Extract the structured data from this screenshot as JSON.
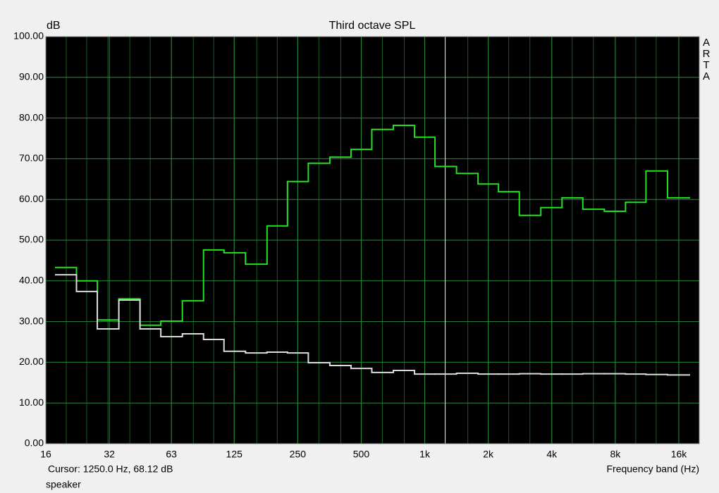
{
  "chart_data": {
    "type": "step",
    "title": "Third octave SPL",
    "y_unit": "dB",
    "watermark": "ARTA",
    "x_label": "Frequency band (Hz)",
    "cursor_label": "Cursor:  1250.0 Hz, 68.12 dB",
    "cursor_x": 1250,
    "x": [
      20,
      25,
      31.5,
      40,
      50,
      63,
      80,
      100,
      125,
      160,
      200,
      250,
      315,
      400,
      500,
      630,
      800,
      1000,
      1250,
      1600,
      2000,
      2500,
      3150,
      4000,
      5000,
      6300,
      8000,
      10000,
      12500,
      16000
    ],
    "xlim": [
      16,
      20000
    ],
    "xscale": "log",
    "xticks": [
      16,
      32,
      63,
      125,
      250,
      500,
      {
        "value": 1000,
        "label": "1k"
      },
      {
        "value": 2000,
        "label": "2k"
      },
      {
        "value": 4000,
        "label": "4k"
      },
      {
        "value": 8000,
        "label": "8k"
      },
      {
        "value": 16000,
        "label": "16k"
      }
    ],
    "ylim": [
      0,
      100
    ],
    "yticks": [
      {
        "value": 0,
        "label": "0.00"
      },
      {
        "value": 10,
        "label": "10.00"
      },
      {
        "value": 20,
        "label": "20.00"
      },
      {
        "value": 30,
        "label": "30.00"
      },
      {
        "value": 40,
        "label": "40.00"
      },
      {
        "value": 50,
        "label": "50.00"
      },
      {
        "value": 60,
        "label": "60.00"
      },
      {
        "value": 70,
        "label": "70.00"
      },
      {
        "value": 80,
        "label": "80.00"
      },
      {
        "value": 90,
        "label": "90.00"
      },
      {
        "value": 100,
        "label": "100.00"
      }
    ],
    "grid": true,
    "series": [
      {
        "name": "speaker",
        "color": "#22e022",
        "values": [
          43.3,
          40.0,
          30.4,
          35.6,
          29.1,
          30.1,
          35.1,
          47.6,
          46.9,
          44.1,
          53.5,
          64.4,
          68.9,
          70.4,
          72.3,
          77.2,
          78.2,
          75.3,
          68.1,
          66.4,
          63.8,
          61.9,
          56.1,
          58.0,
          60.4,
          57.6,
          57.1,
          59.3,
          67.0,
          60.4
        ]
      },
      {
        "color": "#dcdcdc",
        "values": [
          41.5,
          37.4,
          28.2,
          35.3,
          28.2,
          26.3,
          27.0,
          25.6,
          22.7,
          22.3,
          22.5,
          22.3,
          19.9,
          19.2,
          18.5,
          17.5,
          18.0,
          17.1,
          17.1,
          17.3,
          17.1,
          17.1,
          17.2,
          17.1,
          17.1,
          17.2,
          17.2,
          17.1,
          17.0,
          16.9
        ]
      }
    ]
  }
}
